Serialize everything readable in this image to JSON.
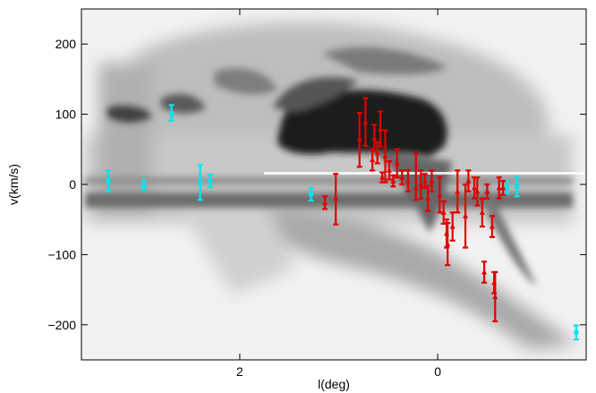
{
  "chart_data": {
    "type": "scatter",
    "xlabel": "l(deg)",
    "ylabel": "v(km/s)",
    "xlim": [
      3.6,
      -1.5
    ],
    "ylim": [
      -250,
      250
    ],
    "x_ticks": [
      2,
      0
    ],
    "x_tick_labels": [
      "2",
      "0"
    ],
    "y_ticks": [
      200,
      100,
      0,
      -100,
      -200
    ],
    "y_tick_labels": [
      "200",
      "100",
      "0",
      "−100",
      "−200"
    ],
    "grid": false,
    "legend": "none",
    "background": "grayscale longitude-velocity map (dark = strong emission)",
    "series": [
      {
        "color": "#00e5ee",
        "marker": "square",
        "points": [
          {
            "x": 3.33,
            "y": 5,
            "lo": -10,
            "hi": 20
          },
          {
            "x": 2.97,
            "y": -1,
            "lo": -8,
            "hi": 6
          },
          {
            "x": 2.69,
            "y": 101,
            "lo": 91,
            "hi": 113
          },
          {
            "x": 2.4,
            "y": 3,
            "lo": -22,
            "hi": 28
          },
          {
            "x": 2.3,
            "y": 5,
            "lo": -4,
            "hi": 14
          },
          {
            "x": 1.28,
            "y": -14,
            "lo": -23,
            "hi": -5
          },
          {
            "x": -0.7,
            "y": -4,
            "lo": -13,
            "hi": 5
          },
          {
            "x": -0.8,
            "y": -3,
            "lo": -17,
            "hi": 11
          },
          {
            "x": -1.4,
            "y": -211,
            "lo": -221,
            "hi": -201
          }
        ]
      },
      {
        "color": "#e00000",
        "marker": "triangle",
        "points": [
          {
            "x": 1.14,
            "y": -26,
            "lo": -35,
            "hi": -17
          },
          {
            "x": 1.03,
            "y": -20,
            "lo": -57,
            "hi": 15
          },
          {
            "x": 0.79,
            "y": 65,
            "lo": 25,
            "hi": 102
          },
          {
            "x": 0.73,
            "y": 89,
            "lo": 55,
            "hi": 123
          },
          {
            "x": 0.66,
            "y": 35,
            "lo": 20,
            "hi": 50
          },
          {
            "x": 0.64,
            "y": 66,
            "lo": 47,
            "hi": 85
          },
          {
            "x": 0.61,
            "y": 45,
            "lo": 30,
            "hi": 60
          },
          {
            "x": 0.58,
            "y": 79,
            "lo": 54,
            "hi": 104
          },
          {
            "x": 0.56,
            "y": 10,
            "lo": 3,
            "hi": 17
          },
          {
            "x": 0.53,
            "y": 40,
            "lo": 3,
            "hi": 77
          },
          {
            "x": 0.49,
            "y": 20,
            "lo": 7,
            "hi": 33
          },
          {
            "x": 0.45,
            "y": 5,
            "lo": -3,
            "hi": 13
          },
          {
            "x": 0.41,
            "y": 30,
            "lo": 10,
            "hi": 50
          },
          {
            "x": 0.36,
            "y": 10,
            "lo": 0,
            "hi": 20
          },
          {
            "x": 0.3,
            "y": 5,
            "lo": -10,
            "hi": 20
          },
          {
            "x": 0.22,
            "y": -5,
            "lo": -22,
            "hi": 44
          },
          {
            "x": 0.17,
            "y": 0,
            "lo": -20,
            "hi": 20
          },
          {
            "x": 0.13,
            "y": 5,
            "lo": -5,
            "hi": 15
          },
          {
            "x": 0.1,
            "y": -20,
            "lo": -38,
            "hi": -2
          },
          {
            "x": 0.06,
            "y": 5,
            "lo": -10,
            "hi": 20
          },
          {
            "x": -0.02,
            "y": -15,
            "lo": -40,
            "hi": 10
          },
          {
            "x": -0.06,
            "y": -40,
            "lo": -56,
            "hi": -24
          },
          {
            "x": -0.09,
            "y": -70,
            "lo": -90,
            "hi": -50
          },
          {
            "x": -0.1,
            "y": -85,
            "lo": -115,
            "hi": -55
          },
          {
            "x": -0.15,
            "y": -60,
            "lo": -80,
            "hi": -40
          },
          {
            "x": -0.2,
            "y": -10,
            "lo": -40,
            "hi": 20
          },
          {
            "x": -0.28,
            "y": -45,
            "lo": -90,
            "hi": 0
          },
          {
            "x": -0.31,
            "y": 5,
            "lo": -10,
            "hi": 20
          },
          {
            "x": -0.37,
            "y": -5,
            "lo": -20,
            "hi": 10
          },
          {
            "x": -0.4,
            "y": -10,
            "lo": -30,
            "hi": 10
          },
          {
            "x": -0.45,
            "y": -40,
            "lo": -60,
            "hi": -20
          },
          {
            "x": -0.47,
            "y": -125,
            "lo": -140,
            "hi": -110
          },
          {
            "x": -0.5,
            "y": -10,
            "lo": -20,
            "hi": 0
          },
          {
            "x": -0.55,
            "y": -60,
            "lo": -75,
            "hi": -45
          },
          {
            "x": -0.57,
            "y": -140,
            "lo": -155,
            "hi": -125
          },
          {
            "x": -0.58,
            "y": -160,
            "lo": -195,
            "hi": -125
          },
          {
            "x": -0.62,
            "y": -5,
            "lo": -20,
            "hi": 10
          },
          {
            "x": -0.66,
            "y": -5,
            "lo": -15,
            "hi": 5
          }
        ]
      }
    ]
  }
}
